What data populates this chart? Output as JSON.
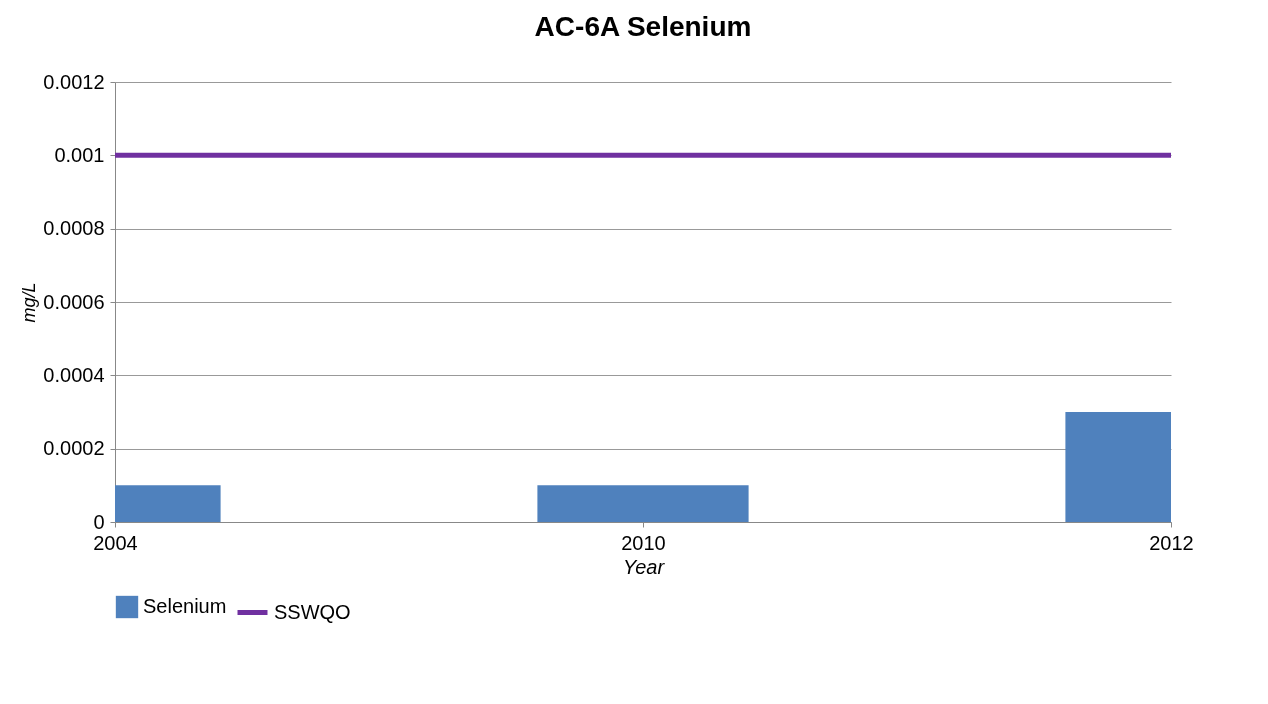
{
  "chart_data": {
    "type": "bar",
    "title": "AC-6A Selenium",
    "xlabel": "Year",
    "ylabel": "mg/L",
    "categories": [
      "2004",
      "2010",
      "2012"
    ],
    "series": [
      {
        "name": "Selenium",
        "color": "#4f81bd",
        "values": [
          0.0001,
          0.0001,
          0.0003
        ]
      },
      {
        "name": "SSWQO",
        "type": "line",
        "color": "#7030a0",
        "values": [
          0.001,
          0.001,
          0.001
        ]
      }
    ],
    "ylim": [
      0,
      0.0012
    ],
    "yticks": [
      0,
      0.0002,
      0.0004,
      0.0006,
      0.0008,
      0.001,
      0.0012
    ],
    "grid": "y",
    "legend": "bottom"
  }
}
